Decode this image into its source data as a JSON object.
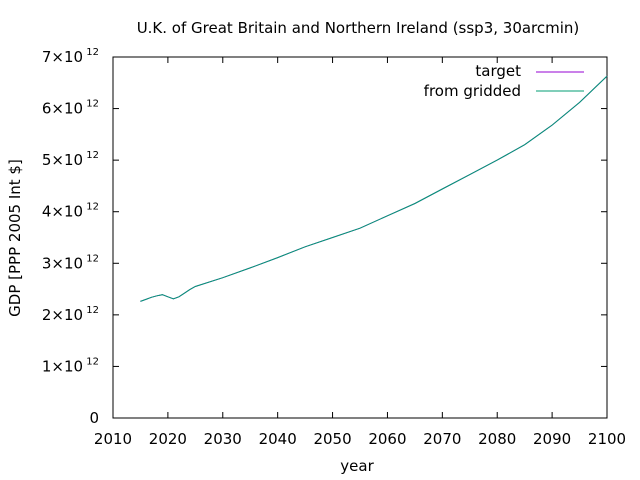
{
  "chart_data": {
    "type": "line",
    "title": "U.K. of Great Britain and Northern Ireland (ssp3, 30arcmin)",
    "xlabel": "year",
    "ylabel": "GDP [PPP 2005 Int $]",
    "xlim": [
      2010,
      2100
    ],
    "ylim": [
      0,
      7000000000000
    ],
    "x_ticks": [
      "2010",
      "2020",
      "2030",
      "2040",
      "2050",
      "2060",
      "2070",
      "2080",
      "2090",
      "2100"
    ],
    "y_ticks": [
      {
        "value": 0,
        "mantissa": "0",
        "exponent": ""
      },
      {
        "value": 1000000000000,
        "mantissa": "1×10",
        "exponent": "12"
      },
      {
        "value": 2000000000000,
        "mantissa": "2×10",
        "exponent": "12"
      },
      {
        "value": 3000000000000,
        "mantissa": "3×10",
        "exponent": "12"
      },
      {
        "value": 4000000000000,
        "mantissa": "4×10",
        "exponent": "12"
      },
      {
        "value": 5000000000000,
        "mantissa": "5×10",
        "exponent": "12"
      },
      {
        "value": 6000000000000,
        "mantissa": "6×10",
        "exponent": "12"
      },
      {
        "value": 7000000000000,
        "mantissa": "7×10",
        "exponent": "12"
      }
    ],
    "grid": false,
    "legend_position": "top-right",
    "x": [
      2015,
      2016,
      2017,
      2018,
      2019,
      2020,
      2021,
      2022,
      2023,
      2024,
      2025,
      2030,
      2035,
      2040,
      2045,
      2050,
      2055,
      2060,
      2065,
      2070,
      2075,
      2080,
      2085,
      2090,
      2095,
      2100
    ],
    "series": [
      {
        "name": "target",
        "color": "#9400d3",
        "values": [
          2260000000000.0,
          2300000000000.0,
          2340000000000.0,
          2370000000000.0,
          2390000000000.0,
          2350000000000.0,
          2310000000000.0,
          2350000000000.0,
          2420000000000.0,
          2490000000000.0,
          2550000000000.0,
          2720000000000.0,
          2910000000000.0,
          3110000000000.0,
          3320000000000.0,
          3500000000000.0,
          3680000000000.0,
          3920000000000.0,
          4160000000000.0,
          4440000000000.0,
          4720000000000.0,
          5000000000000.0,
          5300000000000.0,
          5680000000000.0,
          6120000000000.0,
          6630000000000.0
        ]
      },
      {
        "name": "from gridded",
        "color": "#009e73",
        "values": [
          2260000000000.0,
          2300000000000.0,
          2340000000000.0,
          2370000000000.0,
          2390000000000.0,
          2350000000000.0,
          2310000000000.0,
          2350000000000.0,
          2420000000000.0,
          2490000000000.0,
          2550000000000.0,
          2720000000000.0,
          2910000000000.0,
          3110000000000.0,
          3320000000000.0,
          3500000000000.0,
          3680000000000.0,
          3920000000000.0,
          4160000000000.0,
          4440000000000.0,
          4720000000000.0,
          5000000000000.0,
          5300000000000.0,
          5680000000000.0,
          6120000000000.0,
          6630000000000.0
        ]
      }
    ]
  }
}
